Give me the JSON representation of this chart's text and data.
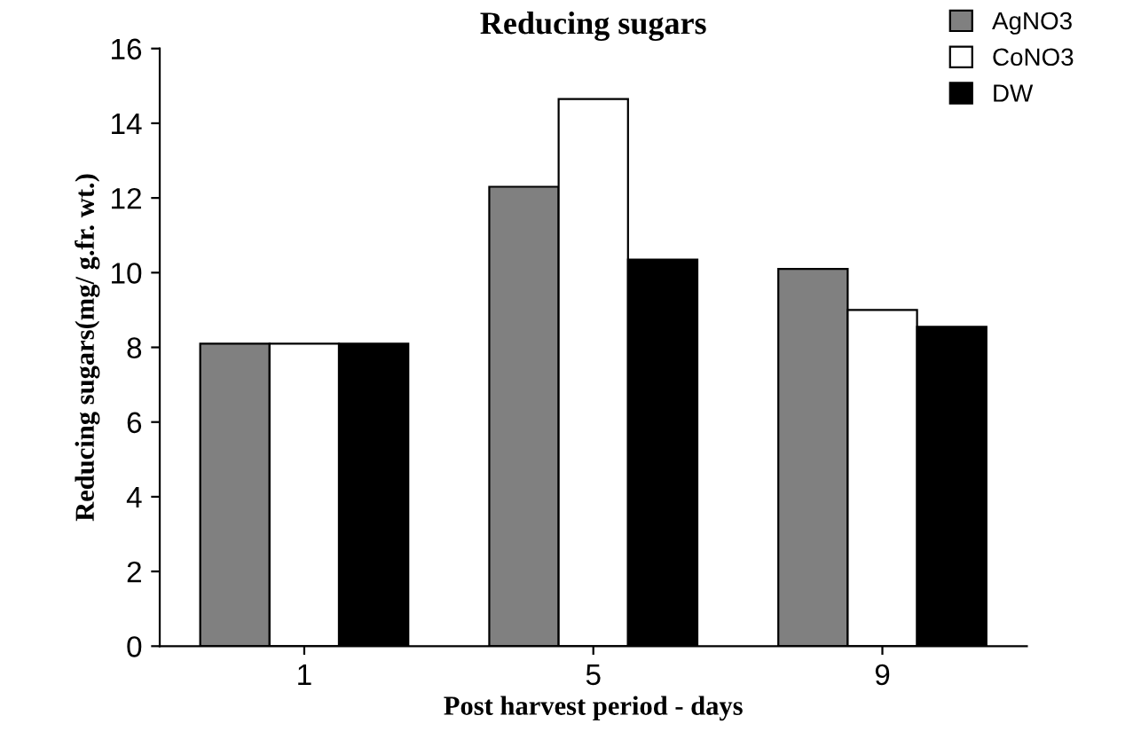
{
  "chart_data": {
    "type": "bar",
    "title": "Reducing sugars",
    "xlabel": "Post harvest period - days",
    "ylabel": "Reducing sugars(mg/ g.fr. wt.)",
    "categories": [
      "1",
      "5",
      "9"
    ],
    "series": [
      {
        "name": "AgNO3",
        "color": "#808080",
        "values": [
          8.1,
          12.3,
          10.1
        ]
      },
      {
        "name": "CoNO3",
        "color": "#ffffff",
        "values": [
          8.1,
          14.65,
          9.0
        ]
      },
      {
        "name": "DW",
        "color": "#000000",
        "values": [
          8.1,
          10.35,
          8.55
        ]
      }
    ],
    "ylim": [
      0,
      16
    ],
    "yticks": [
      0,
      2,
      4,
      6,
      8,
      10,
      12,
      14,
      16
    ],
    "grid": false,
    "legend": "top right"
  }
}
